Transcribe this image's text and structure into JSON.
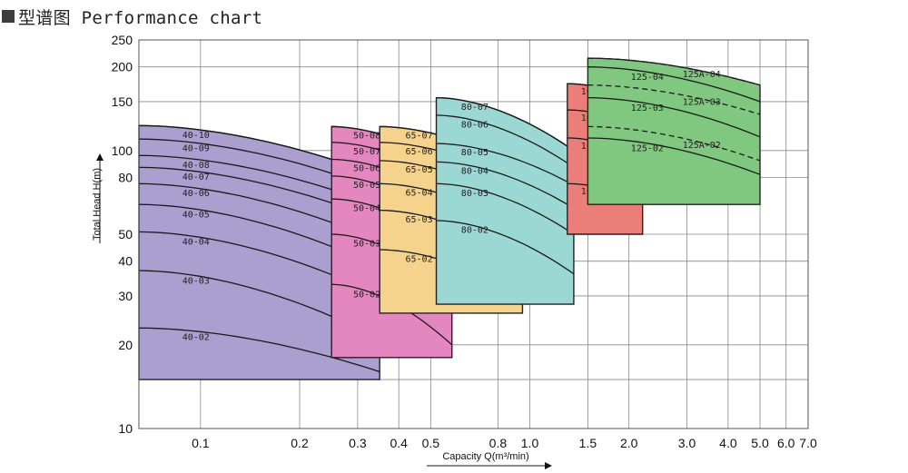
{
  "header": {
    "title": "型谱图 Performance chart"
  },
  "chart_data": {
    "type": "area",
    "title": "型谱图 Performance chart",
    "xlabel": "Capacity Q(m³/min)",
    "ylabel": "Total Head H(m)",
    "x_scale": "log",
    "y_scale": "log",
    "xlim": [
      0.065,
      7.0
    ],
    "ylim": [
      10,
      250
    ],
    "grid": true,
    "x_ticks": [
      {
        "value": 0.1,
        "label": "0.1"
      },
      {
        "value": 0.2,
        "label": "0.2"
      },
      {
        "value": 0.3,
        "label": "0.3"
      },
      {
        "value": 0.4,
        "label": "0.4"
      },
      {
        "value": 0.5,
        "label": "0.5"
      },
      {
        "value": 0.8,
        "label": "0.8"
      },
      {
        "value": 1.0,
        "label": "1.0"
      },
      {
        "value": 1.5,
        "label": "1.5"
      },
      {
        "value": 2.0,
        "label": "2.0"
      },
      {
        "value": 3.0,
        "label": "3.0"
      },
      {
        "value": 4.0,
        "label": "4.0"
      },
      {
        "value": 5.0,
        "label": "5.0"
      },
      {
        "value": 6.0,
        "label": "6.0"
      },
      {
        "value": 7.0,
        "label": "7.0"
      }
    ],
    "y_ticks": [
      {
        "value": 10,
        "label": "10"
      },
      {
        "value": 20,
        "label": "20"
      },
      {
        "value": 30,
        "label": "30"
      },
      {
        "value": 40,
        "label": "40"
      },
      {
        "value": 50,
        "label": "50"
      },
      {
        "value": 80,
        "label": "80"
      },
      {
        "value": 100,
        "label": "100"
      },
      {
        "value": 150,
        "label": "150"
      },
      {
        "value": 200,
        "label": "200"
      },
      {
        "value": 250,
        "label": "250"
      }
    ],
    "series": [
      {
        "name": "40",
        "color": "#aa9fcf",
        "q_min": 0.065,
        "q_max": 0.35,
        "h_min": 15,
        "curves": [
          {
            "label": "40-10",
            "h0": 123,
            "h1": 81
          },
          {
            "label": "40-09",
            "h0": 110,
            "h1": 72
          },
          {
            "label": "40-08",
            "h0": 96,
            "h1": 63
          },
          {
            "label": "40-07",
            "h0": 87,
            "h1": 56
          },
          {
            "label": "40-06",
            "h0": 76,
            "h1": 47
          },
          {
            "label": "40-05",
            "h0": 64,
            "h1": 38
          },
          {
            "label": "40-04",
            "h0": 51,
            "h1": 30
          },
          {
            "label": "40-03",
            "h0": 37,
            "h1": 21
          },
          {
            "label": "40-02",
            "h0": 23,
            "h1": 16
          }
        ]
      },
      {
        "name": "50",
        "color": "#e486bf",
        "q_min": 0.25,
        "q_max": 0.58,
        "h_min": 18,
        "curves": [
          {
            "label": "50-08",
            "h0": 122,
            "h1": 89
          },
          {
            "label": "50-07",
            "h0": 107,
            "h1": 77
          },
          {
            "label": "50-06",
            "h0": 93,
            "h1": 66
          },
          {
            "label": "50-05",
            "h0": 81,
            "h1": 55
          },
          {
            "label": "50-04",
            "h0": 67,
            "h1": 45
          },
          {
            "label": "50-03",
            "h0": 50,
            "h1": 32
          },
          {
            "label": "50-02",
            "h0": 33,
            "h1": 20
          }
        ]
      },
      {
        "name": "65",
        "color": "#f6d38d",
        "q_min": 0.35,
        "q_max": 0.95,
        "h_min": 26,
        "curves": [
          {
            "label": "65-07",
            "h0": 122,
            "h1": 87
          },
          {
            "label": "65-06",
            "h0": 107,
            "h1": 76
          },
          {
            "label": "65-05",
            "h0": 92,
            "h1": 64
          },
          {
            "label": "65-04",
            "h0": 76,
            "h1": 52
          },
          {
            "label": "65-03",
            "h0": 61,
            "h1": 41
          },
          {
            "label": "65-02",
            "h0": 44,
            "h1": 30
          }
        ]
      },
      {
        "name": "80",
        "color": "#9bd8d4",
        "q_min": 0.52,
        "q_max": 1.36,
        "h_min": 28,
        "curves": [
          {
            "label": "80-07",
            "h0": 155,
            "h1": 100
          },
          {
            "label": "80-06",
            "h0": 134,
            "h1": 87
          },
          {
            "label": "80-05",
            "h0": 106,
            "h1": 75
          },
          {
            "label": "80-04",
            "h0": 91,
            "h1": 62
          },
          {
            "label": "80-03",
            "h0": 76,
            "h1": 50
          },
          {
            "label": "80-02",
            "h0": 56,
            "h1": 36
          }
        ]
      },
      {
        "name": "100",
        "color": "#ec7e79",
        "q_min": 1.3,
        "q_max": 2.2,
        "h_min": 50,
        "curves": [
          {
            "label": "100-05",
            "h0": 174,
            "h1": 152
          },
          {
            "label": "100-04",
            "h0": 140,
            "h1": 122
          },
          {
            "label": "100-03",
            "h0": 111,
            "h1": 96
          },
          {
            "label": "100-02",
            "h0": 76,
            "h1": 67
          }
        ]
      },
      {
        "name": "125",
        "color": "#80c77f",
        "q_min": 1.5,
        "q_max": 5.0,
        "h_min": 64,
        "curves": [
          {
            "label": "125A-04",
            "h0": 215,
            "h1": 172,
            "dashed": true
          },
          {
            "label": "125-04",
            "h0": 200,
            "h1": 150
          },
          {
            "label": "125A-03",
            "h0": 172,
            "h1": 135,
            "dashed": true
          },
          {
            "label": "125-03",
            "h0": 155,
            "h1": 112
          },
          {
            "label": "125A-02",
            "h0": 122,
            "h1": 92,
            "dashed": true
          },
          {
            "label": "125-02",
            "h0": 111,
            "h1": 82
          }
        ]
      }
    ]
  }
}
